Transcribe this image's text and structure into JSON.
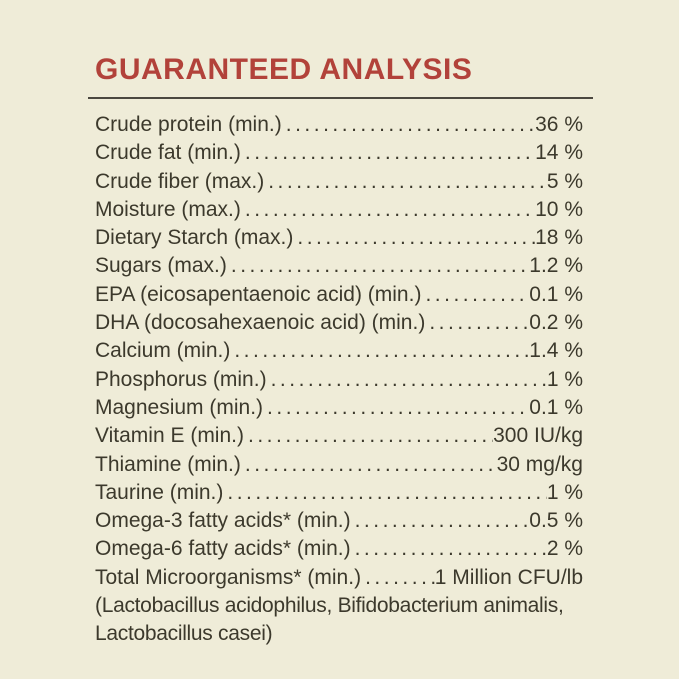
{
  "page": {
    "background_color": "#efecd8",
    "text_color": "#3c392c",
    "accent_color": "#b2423a",
    "divider_color": "#4b4840"
  },
  "header": {
    "title": "GUARANTEED ANALYSIS"
  },
  "analysis": {
    "rows": [
      {
        "label": "Crude protein (min.)",
        "value": "36 %"
      },
      {
        "label": "Crude fat (min.)",
        "value": "14 %"
      },
      {
        "label": "Crude fiber (max.)",
        "value": "5 %"
      },
      {
        "label": "Moisture (max.)",
        "value": "10 %"
      },
      {
        "label": "Dietary Starch (max.)",
        "value": "18 %"
      },
      {
        "label": "Sugars (max.)",
        "value": "1.2 %"
      },
      {
        "label": "EPA (eicosapentaenoic acid) (min.)",
        "value": "0.1 %"
      },
      {
        "label": "DHA (docosahexaenoic acid) (min.)",
        "value": "0.2 %"
      },
      {
        "label": "Calcium (min.)",
        "value": "1.4 %"
      },
      {
        "label": "Phosphorus (min.)",
        "value": "1 %"
      },
      {
        "label": "Magnesium (min.)",
        "value": "0.1 %"
      },
      {
        "label": "Vitamin E (min.)",
        "value": "300 IU/kg"
      },
      {
        "label": "Thiamine (min.)",
        "value": "30 mg/kg"
      },
      {
        "label": "Taurine (min.)",
        "value": "1 %"
      },
      {
        "label": "Omega-3 fatty acids* (min.)",
        "value": "0.5 %"
      },
      {
        "label": "Omega-6 fatty acids* (min.)",
        "value": "2 %"
      },
      {
        "label": "Total Microorganisms* (min.)",
        "value": "1 Million CFU/lb"
      }
    ],
    "note_lines": [
      "(Lactobacillus acidophilus, Bifidobacterium animalis,",
      "Lactobacillus casei)"
    ]
  }
}
